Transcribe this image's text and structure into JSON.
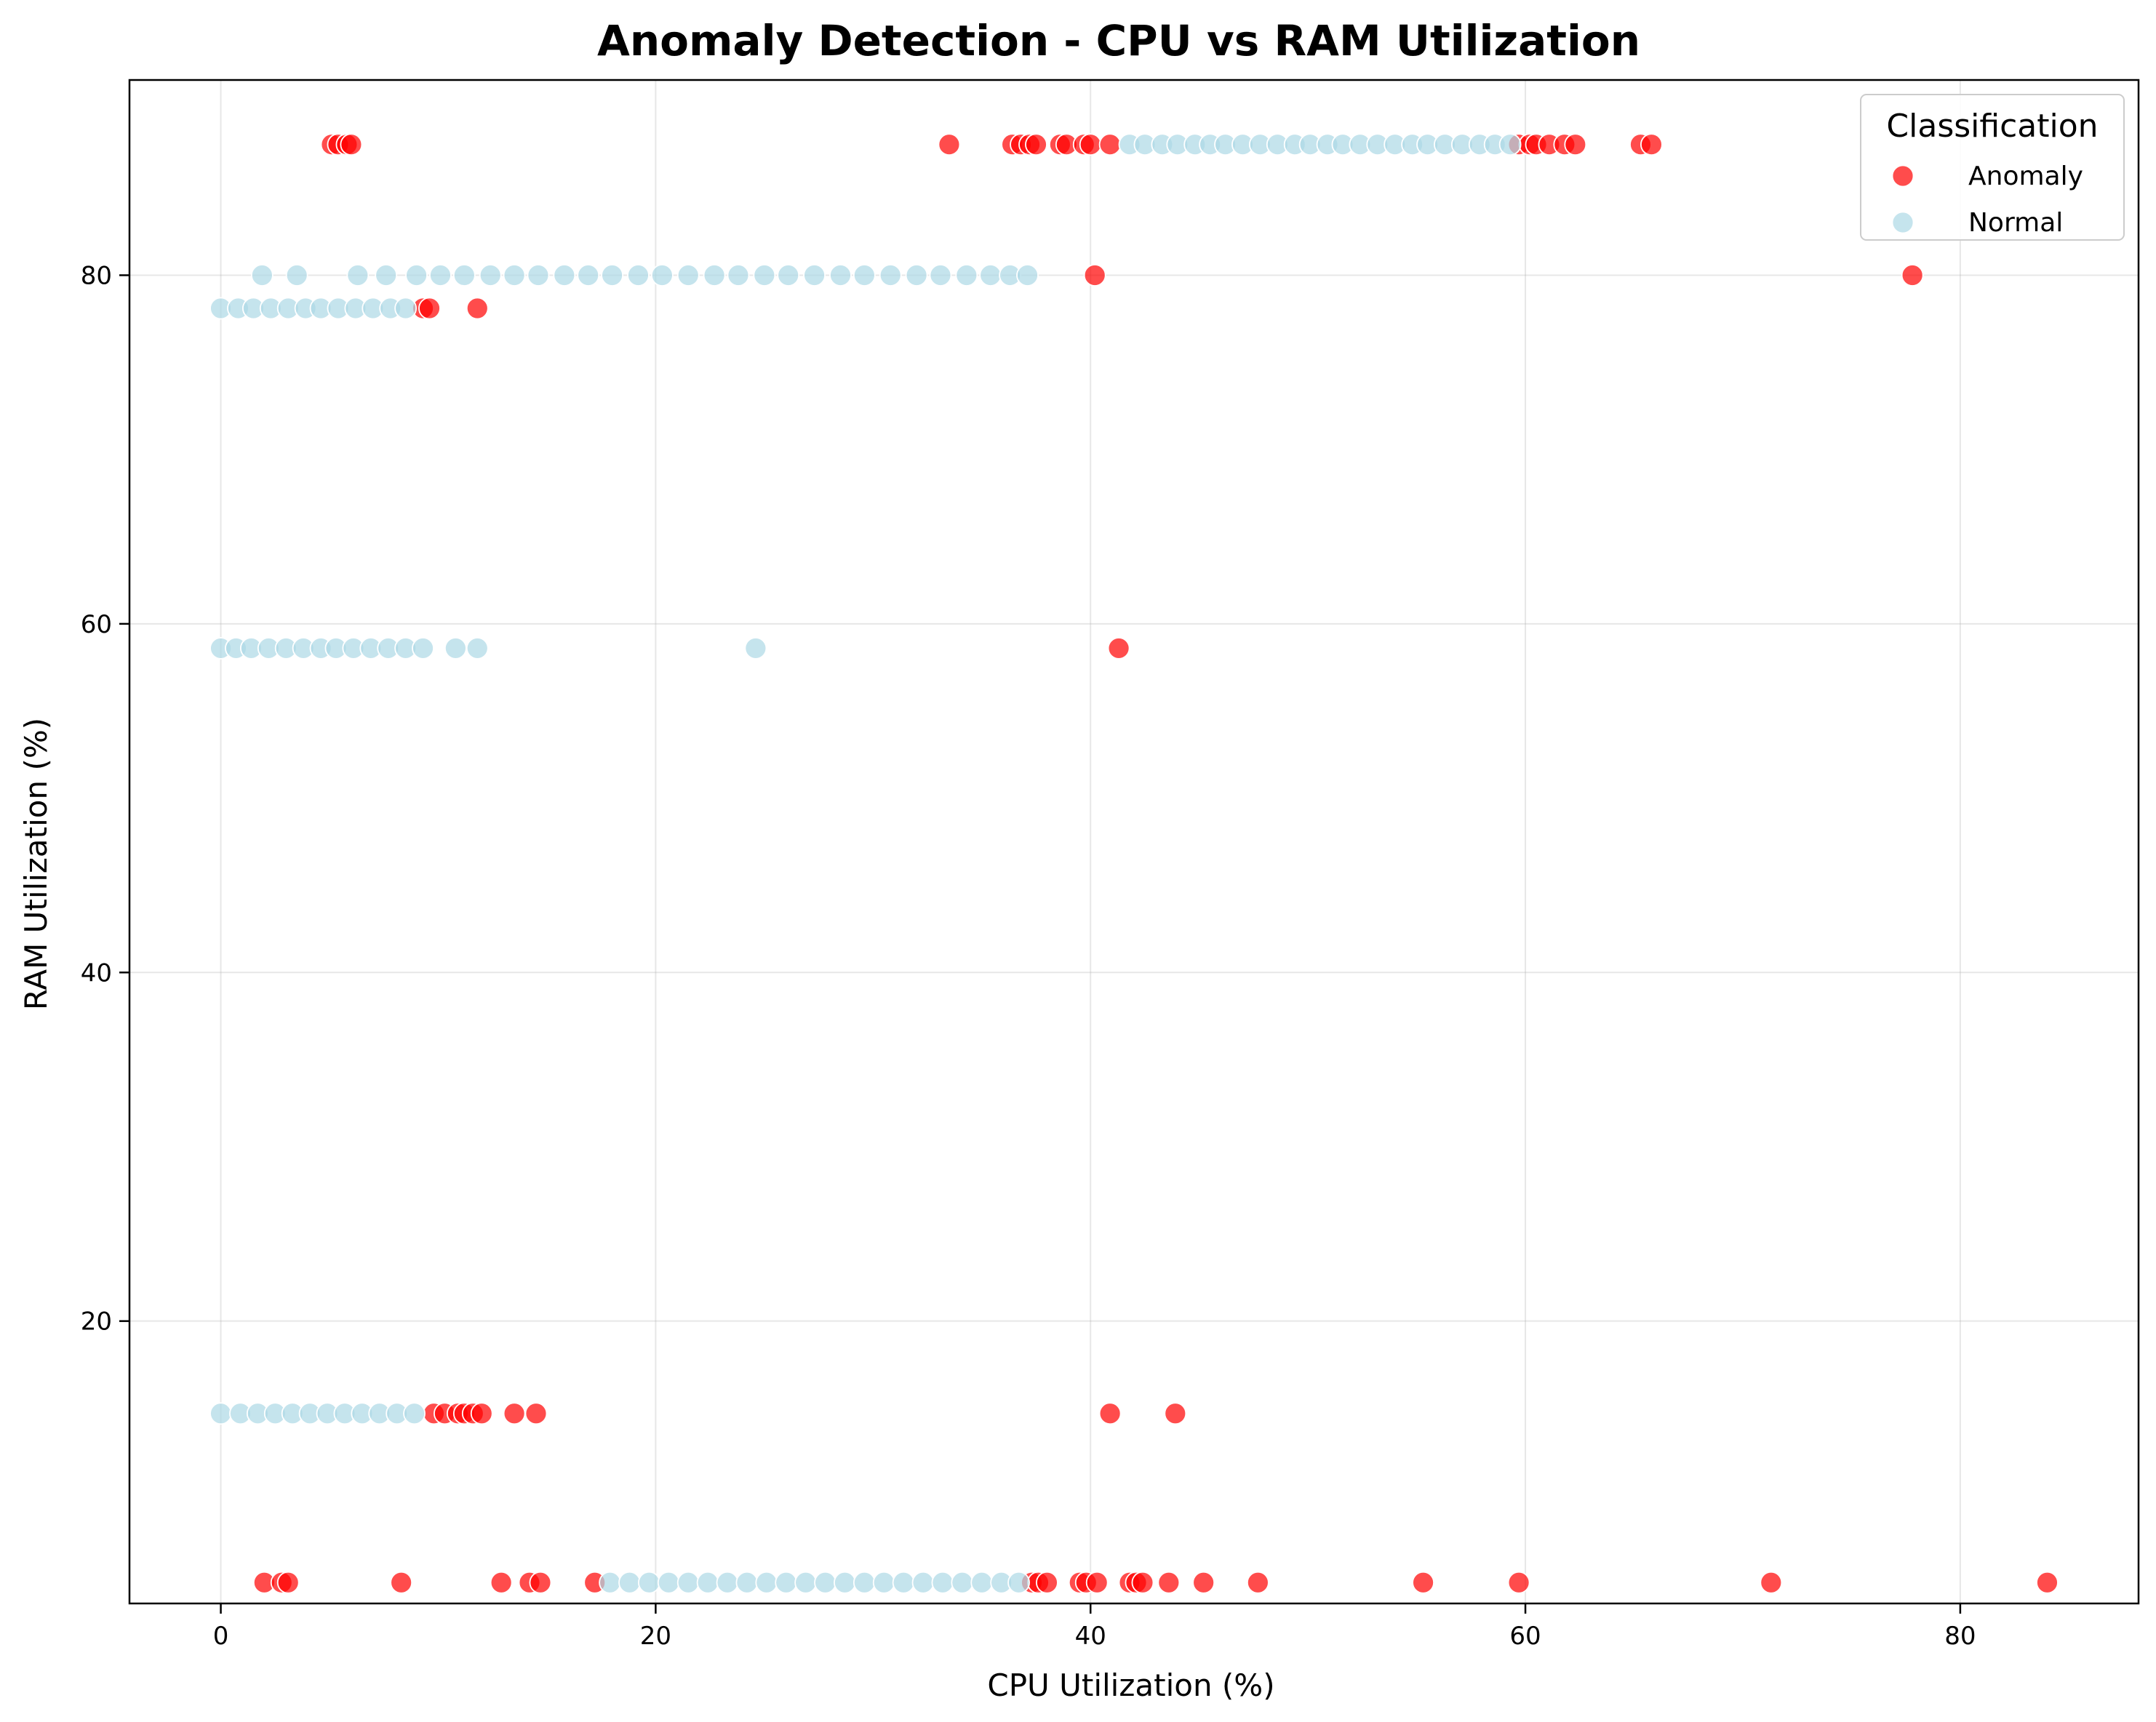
{
  "chart_data": {
    "type": "scatter",
    "title": "Anomaly Detection - CPU vs RAM Utilization",
    "xlabel": "CPU Utilization (%)",
    "ylabel": "RAM Utilization (%)",
    "xlim": [
      -4.2,
      88.2
    ],
    "ylim": [
      3.8,
      91.2
    ],
    "xticks": [
      0,
      20,
      40,
      60,
      80
    ],
    "yticks": [
      20,
      40,
      60,
      80
    ],
    "grid": true,
    "legend": {
      "title": "Classification",
      "placement": "top-right"
    },
    "series": [
      {
        "name": "Anomaly",
        "color": "#ff0000",
        "opacity": 0.7,
        "points": [
          [
            5.1,
            87.5
          ],
          [
            5.4,
            87.5
          ],
          [
            5.8,
            87.5
          ],
          [
            6.0,
            87.5
          ],
          [
            33.5,
            87.5
          ],
          [
            36.4,
            87.5
          ],
          [
            36.8,
            87.5
          ],
          [
            37.2,
            87.5
          ],
          [
            37.5,
            87.5
          ],
          [
            38.6,
            87.5
          ],
          [
            38.9,
            87.5
          ],
          [
            39.7,
            87.5
          ],
          [
            40.0,
            87.5
          ],
          [
            40.9,
            87.5
          ],
          [
            59.7,
            87.5
          ],
          [
            60.2,
            87.5
          ],
          [
            60.5,
            87.5
          ],
          [
            61.1,
            87.5
          ],
          [
            61.8,
            87.5
          ],
          [
            62.3,
            87.5
          ],
          [
            65.3,
            87.5
          ],
          [
            65.8,
            87.5
          ],
          [
            40.2,
            80.0
          ],
          [
            77.8,
            80.0
          ],
          [
            9.3,
            78.1
          ],
          [
            9.6,
            78.1
          ],
          [
            11.8,
            78.1
          ],
          [
            41.3,
            58.6
          ],
          [
            9.8,
            14.7
          ],
          [
            10.3,
            14.7
          ],
          [
            10.9,
            14.7
          ],
          [
            11.2,
            14.7
          ],
          [
            11.6,
            14.7
          ],
          [
            12.0,
            14.7
          ],
          [
            13.5,
            14.7
          ],
          [
            14.5,
            14.7
          ],
          [
            40.9,
            14.7
          ],
          [
            43.9,
            14.7
          ],
          [
            2.0,
            5.0
          ],
          [
            2.8,
            5.0
          ],
          [
            3.1,
            5.0
          ],
          [
            8.3,
            5.0
          ],
          [
            12.9,
            5.0
          ],
          [
            14.2,
            5.0
          ],
          [
            14.7,
            5.0
          ],
          [
            17.2,
            5.0
          ],
          [
            37.3,
            5.0
          ],
          [
            37.6,
            5.0
          ],
          [
            38.0,
            5.0
          ],
          [
            39.5,
            5.0
          ],
          [
            39.8,
            5.0
          ],
          [
            40.3,
            5.0
          ],
          [
            41.8,
            5.0
          ],
          [
            42.1,
            5.0
          ],
          [
            42.4,
            5.0
          ],
          [
            43.6,
            5.0
          ],
          [
            45.2,
            5.0
          ],
          [
            47.7,
            5.0
          ],
          [
            55.3,
            5.0
          ],
          [
            59.7,
            5.0
          ],
          [
            71.3,
            5.0
          ],
          [
            84.0,
            5.0
          ]
        ]
      },
      {
        "name": "Normal",
        "color": "#add8e6",
        "opacity": 0.7,
        "points": [
          [
            41.8,
            87.5
          ],
          [
            42.5,
            87.5
          ],
          [
            43.3,
            87.5
          ],
          [
            44.0,
            87.5
          ],
          [
            44.8,
            87.5
          ],
          [
            45.5,
            87.5
          ],
          [
            46.2,
            87.5
          ],
          [
            47.0,
            87.5
          ],
          [
            47.8,
            87.5
          ],
          [
            48.6,
            87.5
          ],
          [
            49.4,
            87.5
          ],
          [
            50.1,
            87.5
          ],
          [
            50.9,
            87.5
          ],
          [
            51.6,
            87.5
          ],
          [
            52.4,
            87.5
          ],
          [
            53.2,
            87.5
          ],
          [
            54.0,
            87.5
          ],
          [
            54.8,
            87.5
          ],
          [
            55.5,
            87.5
          ],
          [
            56.3,
            87.5
          ],
          [
            57.1,
            87.5
          ],
          [
            57.9,
            87.5
          ],
          [
            58.6,
            87.5
          ],
          [
            59.3,
            87.5
          ],
          [
            1.9,
            80.0
          ],
          [
            3.5,
            80.0
          ],
          [
            6.3,
            80.0
          ],
          [
            7.6,
            80.0
          ],
          [
            9.0,
            80.0
          ],
          [
            10.1,
            80.0
          ],
          [
            11.2,
            80.0
          ],
          [
            12.4,
            80.0
          ],
          [
            13.5,
            80.0
          ],
          [
            14.6,
            80.0
          ],
          [
            15.8,
            80.0
          ],
          [
            16.9,
            80.0
          ],
          [
            18.0,
            80.0
          ],
          [
            19.2,
            80.0
          ],
          [
            20.3,
            80.0
          ],
          [
            21.5,
            80.0
          ],
          [
            22.7,
            80.0
          ],
          [
            23.8,
            80.0
          ],
          [
            25.0,
            80.0
          ],
          [
            26.1,
            80.0
          ],
          [
            27.3,
            80.0
          ],
          [
            28.5,
            80.0
          ],
          [
            29.6,
            80.0
          ],
          [
            30.8,
            80.0
          ],
          [
            32.0,
            80.0
          ],
          [
            33.1,
            80.0
          ],
          [
            34.3,
            80.0
          ],
          [
            35.4,
            80.0
          ],
          [
            36.3,
            80.0
          ],
          [
            37.1,
            80.0
          ],
          [
            0.0,
            78.1
          ],
          [
            0.8,
            78.1
          ],
          [
            1.5,
            78.1
          ],
          [
            2.3,
            78.1
          ],
          [
            3.1,
            78.1
          ],
          [
            3.9,
            78.1
          ],
          [
            4.6,
            78.1
          ],
          [
            5.4,
            78.1
          ],
          [
            6.2,
            78.1
          ],
          [
            7.0,
            78.1
          ],
          [
            7.8,
            78.1
          ],
          [
            8.5,
            78.1
          ],
          [
            0.0,
            58.6
          ],
          [
            0.7,
            58.6
          ],
          [
            1.4,
            58.6
          ],
          [
            2.2,
            58.6
          ],
          [
            3.0,
            58.6
          ],
          [
            3.8,
            58.6
          ],
          [
            4.6,
            58.6
          ],
          [
            5.3,
            58.6
          ],
          [
            6.1,
            58.6
          ],
          [
            6.9,
            58.6
          ],
          [
            7.7,
            58.6
          ],
          [
            8.5,
            58.6
          ],
          [
            9.3,
            58.6
          ],
          [
            10.8,
            58.6
          ],
          [
            11.8,
            58.6
          ],
          [
            24.6,
            58.6
          ],
          [
            0.0,
            14.7
          ],
          [
            0.9,
            14.7
          ],
          [
            1.7,
            14.7
          ],
          [
            2.5,
            14.7
          ],
          [
            3.3,
            14.7
          ],
          [
            4.1,
            14.7
          ],
          [
            4.9,
            14.7
          ],
          [
            5.7,
            14.7
          ],
          [
            6.5,
            14.7
          ],
          [
            7.3,
            14.7
          ],
          [
            8.1,
            14.7
          ],
          [
            8.9,
            14.7
          ],
          [
            17.9,
            5.0
          ],
          [
            18.8,
            5.0
          ],
          [
            19.7,
            5.0
          ],
          [
            20.6,
            5.0
          ],
          [
            21.5,
            5.0
          ],
          [
            22.4,
            5.0
          ],
          [
            23.3,
            5.0
          ],
          [
            24.2,
            5.0
          ],
          [
            25.1,
            5.0
          ],
          [
            26.0,
            5.0
          ],
          [
            26.9,
            5.0
          ],
          [
            27.8,
            5.0
          ],
          [
            28.7,
            5.0
          ],
          [
            29.6,
            5.0
          ],
          [
            30.5,
            5.0
          ],
          [
            31.4,
            5.0
          ],
          [
            32.3,
            5.0
          ],
          [
            33.2,
            5.0
          ],
          [
            34.1,
            5.0
          ],
          [
            35.0,
            5.0
          ],
          [
            35.9,
            5.0
          ],
          [
            36.7,
            5.0
          ]
        ]
      }
    ]
  }
}
